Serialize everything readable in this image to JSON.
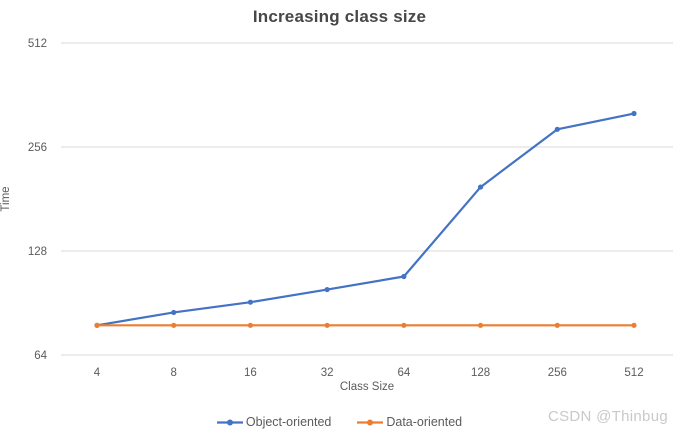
{
  "title": "Increasing class size",
  "watermark": "CSDN @Thinbug",
  "colors": {
    "background": "#ffffff",
    "gridline": "#d9d9d9",
    "axis_text": "#5b5b5b",
    "title_text": "#474747",
    "watermark_text": "#c9c9c9",
    "object_oriented": "#4472c4",
    "data_oriented": "#ed7d31"
  },
  "chart_data": {
    "type": "line",
    "title": "Increasing class size",
    "xlabel": "Class Size",
    "ylabel": "Time",
    "x_scale": "log2",
    "y_scale": "log2",
    "grid": true,
    "legend_position": "bottom",
    "categories": [
      4,
      8,
      16,
      32,
      64,
      128,
      256,
      512
    ],
    "y_ticks": [
      64,
      128,
      256,
      512
    ],
    "ylim": [
      64,
      512
    ],
    "series": [
      {
        "name": "Object-oriented",
        "color": "#4472c4",
        "values": [
          78,
          85,
          91,
          99,
          108,
          196,
          288,
          320
        ]
      },
      {
        "name": "Data-oriented",
        "color": "#ed7d31",
        "values": [
          78,
          78,
          78,
          78,
          78,
          78,
          78,
          78
        ]
      }
    ]
  }
}
